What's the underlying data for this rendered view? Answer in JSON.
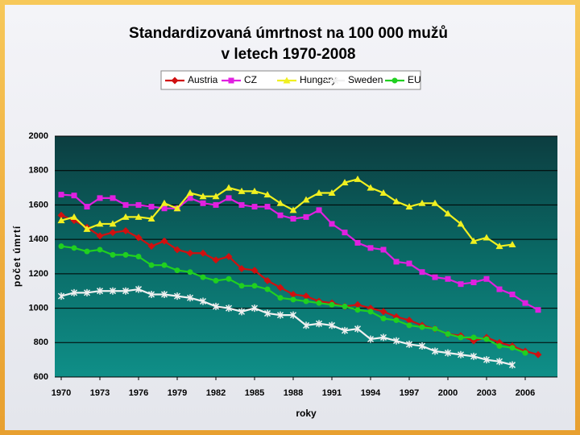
{
  "chart_data": {
    "type": "line",
    "title": [
      "Standardizovaná úmrtnost na 100 000 mužů",
      "v letech 1970-2008"
    ],
    "xlabel": "roky",
    "ylabel": "počet úmrtí",
    "x": [
      1970,
      1971,
      1972,
      1973,
      1974,
      1975,
      1976,
      1977,
      1978,
      1979,
      1980,
      1981,
      1982,
      1983,
      1984,
      1985,
      1986,
      1987,
      1988,
      1989,
      1990,
      1991,
      1992,
      1993,
      1994,
      1995,
      1996,
      1997,
      1998,
      1999,
      2000,
      2001,
      2002,
      2003,
      2004,
      2005,
      2006,
      2007
    ],
    "xlim": [
      1969.5,
      2008.5
    ],
    "xticks": [
      1970,
      1973,
      1976,
      1979,
      1982,
      1985,
      1988,
      1991,
      1994,
      1997,
      2000,
      2003,
      2006
    ],
    "ylim": [
      600,
      2000
    ],
    "yticks": [
      600,
      800,
      1000,
      1200,
      1400,
      1600,
      1800,
      2000
    ],
    "grid": true,
    "legend": "top",
    "series": [
      {
        "name": "Austria",
        "color": "#d01010",
        "marker": "diamond",
        "values": [
          1540,
          1510,
          1470,
          1420,
          1440,
          1450,
          1410,
          1360,
          1390,
          1340,
          1320,
          1320,
          1280,
          1300,
          1230,
          1220,
          1160,
          1120,
          1080,
          1070,
          1040,
          1030,
          1010,
          1020,
          1000,
          980,
          950,
          930,
          900,
          880,
          850,
          840,
          810,
          830,
          800,
          780,
          750,
          730
        ]
      },
      {
        "name": "CZ",
        "color": "#e020e0",
        "marker": "square",
        "values": [
          1660,
          1655,
          1590,
          1640,
          1640,
          1600,
          1600,
          1590,
          1580,
          1580,
          1640,
          1610,
          1600,
          1640,
          1600,
          1590,
          1590,
          1540,
          1520,
          1530,
          1570,
          1490,
          1440,
          1380,
          1350,
          1340,
          1270,
          1260,
          1210,
          1180,
          1170,
          1140,
          1150,
          1170,
          1110,
          1080,
          1030,
          990
        ]
      },
      {
        "name": "Hungary",
        "color": "#f0f020",
        "marker": "triangle",
        "values": [
          1510,
          1530,
          1460,
          1490,
          1490,
          1530,
          1530,
          1520,
          1610,
          1580,
          1670,
          1650,
          1650,
          1700,
          1680,
          1680,
          1660,
          1610,
          1570,
          1630,
          1670,
          1670,
          1730,
          1750,
          1700,
          1670,
          1620,
          1590,
          1610,
          1610,
          1550,
          1490,
          1390,
          1410,
          1360,
          1370,
          null,
          null
        ]
      },
      {
        "name": "Sweden",
        "color": "#f0f0f0",
        "marker": "star",
        "values": [
          1070,
          1090,
          1090,
          1100,
          1100,
          1100,
          1110,
          1080,
          1080,
          1070,
          1060,
          1040,
          1010,
          1000,
          980,
          1000,
          970,
          960,
          960,
          900,
          910,
          900,
          870,
          880,
          820,
          830,
          810,
          790,
          780,
          750,
          740,
          730,
          720,
          700,
          690,
          670,
          null,
          null
        ]
      },
      {
        "name": "EU",
        "color": "#20d020",
        "marker": "circle",
        "values": [
          1360,
          1350,
          1330,
          1340,
          1310,
          1310,
          1300,
          1250,
          1250,
          1220,
          1210,
          1180,
          1160,
          1170,
          1130,
          1130,
          1110,
          1060,
          1050,
          1040,
          1030,
          1020,
          1010,
          990,
          980,
          940,
          930,
          900,
          890,
          880,
          850,
          830,
          830,
          820,
          780,
          770,
          740,
          null
        ]
      }
    ]
  }
}
